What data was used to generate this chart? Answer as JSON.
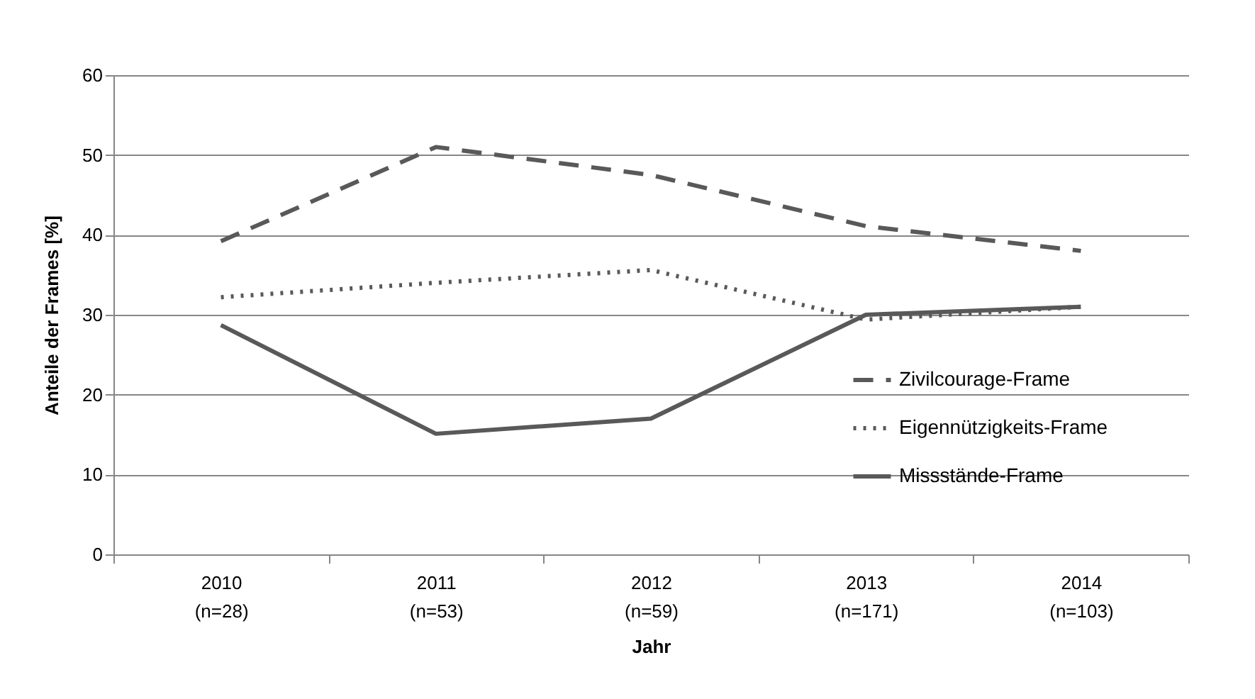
{
  "chart_data": {
    "type": "line",
    "xlabel": "Jahr",
    "ylabel": "Anteile der Frames [%]",
    "categories": [
      "2010 (n=28)",
      "2011 (n=53)",
      "2012 (n=59)",
      "2013 (n=171)",
      "2014 (n=103)"
    ],
    "series": [
      {
        "name": "Zivilcourage-Frame",
        "color": "#595959",
        "line_style": "dashed",
        "values": [
          39.2,
          51,
          47.5,
          41.1,
          38
        ]
      },
      {
        "name": "Eigennützigkeits-Frame",
        "color": "#595959",
        "line_style": "dotted",
        "values": [
          32.2,
          34,
          35.6,
          29.4,
          31
        ]
      },
      {
        "name": "Missstände-Frame",
        "color": "#595959",
        "line_style": "solid",
        "values": [
          28.7,
          15.1,
          17,
          30,
          31
        ]
      }
    ],
    "ylim": [
      0,
      60
    ],
    "yticks": [
      0,
      10,
      20,
      30,
      40,
      50,
      60
    ],
    "grid": "y",
    "legend": "bottom right",
    "marker": "none"
  }
}
